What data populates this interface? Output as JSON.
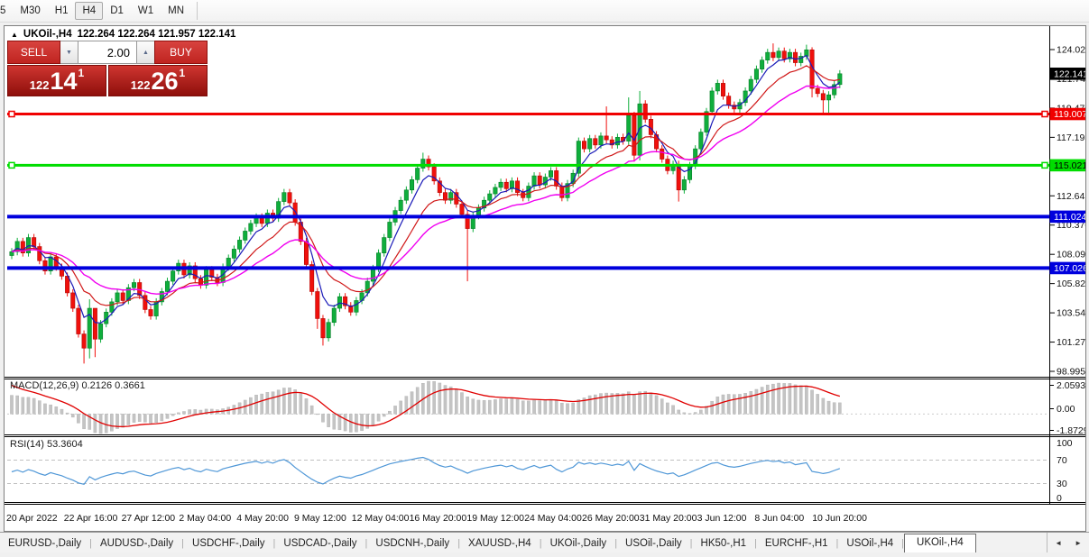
{
  "toolbar": {
    "timeframes": [
      "5",
      "M30",
      "H1",
      "H4",
      "D1",
      "W1",
      "MN"
    ],
    "active": "H4"
  },
  "chart": {
    "collapse_arrow": "▲",
    "symbol_title": "UKOil-,H4",
    "ohlc_text": "122.264 122.264 121.957 122.141"
  },
  "trade_panel": {
    "sell_label": "SELL",
    "buy_label": "BUY",
    "volume": "2.00",
    "spin_down": "▼",
    "spin_up": "▲",
    "bid": {
      "prefix": "122",
      "big": "14",
      "sup": "1"
    },
    "ask": {
      "prefix": "122",
      "big": "26",
      "sup": "1"
    }
  },
  "indicators": {
    "macd_label": "MACD(12,26,9) 0.2126 0.3661",
    "rsi_label": "RSI(14) 53.3604"
  },
  "tabs": {
    "items": [
      "EURUSD-,Daily",
      "AUDUSD-,Daily",
      "USDCHF-,Daily",
      "USDCAD-,Daily",
      "USDCNH-,Daily",
      "XAUUSD-,H4",
      "UKOil-,Daily",
      "USOil-,Daily",
      "HK50-,H1",
      "EURCHF-,H1",
      "USOil-,H4"
    ],
    "active": "UKOil-,H4",
    "scroll_left": "◄",
    "scroll_right": "►"
  },
  "chart_data": {
    "type": "candlestick",
    "symbol": "UKOil-",
    "timeframe": "H4",
    "current_price": 122.141,
    "price_axis_ticks": [
      124.02,
      121.745,
      119.47,
      117.195,
      112.645,
      110.37,
      108.095,
      105.82,
      103.545,
      101.27,
      98.995
    ],
    "price_boxes": [
      {
        "label": "122.141",
        "value": 122.141,
        "bg": "#000000",
        "fg": "#ffffff"
      },
      {
        "label": "119.007",
        "value": 119.007,
        "bg": "#f00000",
        "fg": "#ffffff"
      },
      {
        "label": "115.021",
        "value": 115.021,
        "bg": "#00dd00",
        "fg": "#000000"
      },
      {
        "label": "111.024",
        "value": 111.024,
        "bg": "#0000dd",
        "fg": "#ffffff"
      },
      {
        "label": "107.026",
        "value": 107.026,
        "bg": "#0000dd",
        "fg": "#ffffff"
      }
    ],
    "hlines": [
      {
        "value": 119.007,
        "color": "#f00000",
        "width": 3,
        "markers": true
      },
      {
        "value": 115.021,
        "color": "#00dd00",
        "width": 3,
        "markers": true
      },
      {
        "value": 111.024,
        "color": "#0000dd",
        "width": 4,
        "markers": false
      },
      {
        "value": 107.026,
        "color": "#0000dd",
        "width": 4,
        "markers": false
      }
    ],
    "time_axis_labels": [
      "20 Apr 2022",
      "22 Apr 16:00",
      "27 Apr 12:00",
      "2 May 04:00",
      "4 May 20:00",
      "9 May 12:00",
      "12 May 04:00",
      "16 May 20:00",
      "19 May 12:00",
      "24 May 04:00",
      "26 May 20:00",
      "31 May 20:00",
      "3 Jun 12:00",
      "8 Jun 04:00",
      "10 Jun 20:00"
    ],
    "candles": {
      "default_wick": 0.28,
      "closes": [
        108.3,
        109.1,
        108.2,
        109.4,
        108.7,
        107.6,
        106.8,
        107.9,
        107.1,
        106.4,
        105.1,
        103.9,
        101.9,
        100.8,
        103.9,
        101.5,
        102.7,
        103.6,
        104.4,
        105.1,
        104.5,
        105.5,
        105.9,
        104.9,
        103.8,
        103.3,
        104.4,
        105.2,
        106.0,
        106.8,
        107.4,
        106.5,
        107.2,
        106.2,
        105.7,
        106.9,
        106.3,
        105.9,
        107.1,
        107.8,
        108.5,
        109.2,
        109.9,
        110.5,
        111.0,
        110.5,
        111.3,
        110.9,
        112.2,
        112.9,
        112.1,
        110.6,
        109.1,
        107.3,
        105.2,
        103.1,
        101.6,
        102.8,
        103.9,
        104.8,
        104.1,
        103.6,
        104.5,
        105.1,
        106.0,
        107.0,
        108.2,
        109.4,
        110.6,
        111.5,
        112.3,
        113.1,
        113.9,
        114.8,
        115.5,
        114.9,
        113.8,
        112.9,
        112.3,
        112.9,
        112.0,
        111.2,
        110.1,
        111.1,
        111.7,
        112.3,
        112.8,
        113.3,
        113.7,
        113.2,
        113.8,
        112.9,
        112.5,
        113.4,
        114.2,
        113.5,
        114.1,
        114.6,
        113.4,
        112.5,
        113.6,
        114.4,
        116.9,
        116.3,
        117.1,
        116.6,
        117.3,
        117.0,
        116.6,
        117.2,
        116.9,
        118.9,
        115.8,
        119.8,
        118.6,
        117.4,
        116.3,
        115.5,
        114.6,
        115.1,
        113.1,
        113.9,
        115.0,
        116.3,
        117.6,
        119.2,
        120.8,
        121.4,
        120.4,
        119.7,
        119.4,
        119.9,
        120.8,
        121.7,
        122.5,
        123.2,
        123.8,
        123.4,
        123.9,
        123.3,
        123.8,
        123.0,
        123.5,
        124.0,
        121.0,
        120.6,
        120.1,
        120.5,
        121.3,
        122.14
      ]
    },
    "wick_overrides": {
      "13": [
        null,
        99.6
      ],
      "14": [
        104.6,
        100.0
      ],
      "15": [
        103.0,
        100.1
      ],
      "55": [
        null,
        102.3
      ],
      "56": [
        null,
        101.0
      ],
      "74": [
        116.0,
        null
      ],
      "82": [
        null,
        106.0
      ],
      "107": [
        119.6,
        null
      ],
      "111": [
        120.3,
        null
      ],
      "112": [
        null,
        115.3
      ],
      "113": [
        120.8,
        115.4
      ],
      "120": [
        null,
        112.2
      ],
      "137": [
        124.5,
        null
      ],
      "143": [
        124.4,
        null
      ],
      "144": [
        124.2,
        120.3
      ],
      "146": [
        null,
        119.0
      ],
      "147": [
        null,
        118.9
      ]
    },
    "moving_averages": [
      {
        "period": 5,
        "color": "#1a1ab8"
      },
      {
        "period": 12,
        "color": "#d01818"
      },
      {
        "period": 24,
        "color": "#f000f0"
      }
    ],
    "macd": {
      "params": "12,26,9",
      "main_last": 0.2126,
      "signal_last": 0.3661,
      "scale_labels": [
        "2.0593",
        "0.00",
        "-1.8729"
      ],
      "hist_color": "#c4c4c4",
      "signal_color": "#e00000"
    },
    "rsi": {
      "period": 14,
      "last": 53.3604,
      "scale_labels": [
        "100",
        "70",
        "30",
        "0"
      ],
      "overbought": 70,
      "oversold": 30,
      "color": "#4f97d7"
    },
    "colors": {
      "bull": "#0fae3c",
      "bull_border": "#067f28",
      "bear": "#f0100c",
      "bear_border": "#b00a06"
    }
  }
}
